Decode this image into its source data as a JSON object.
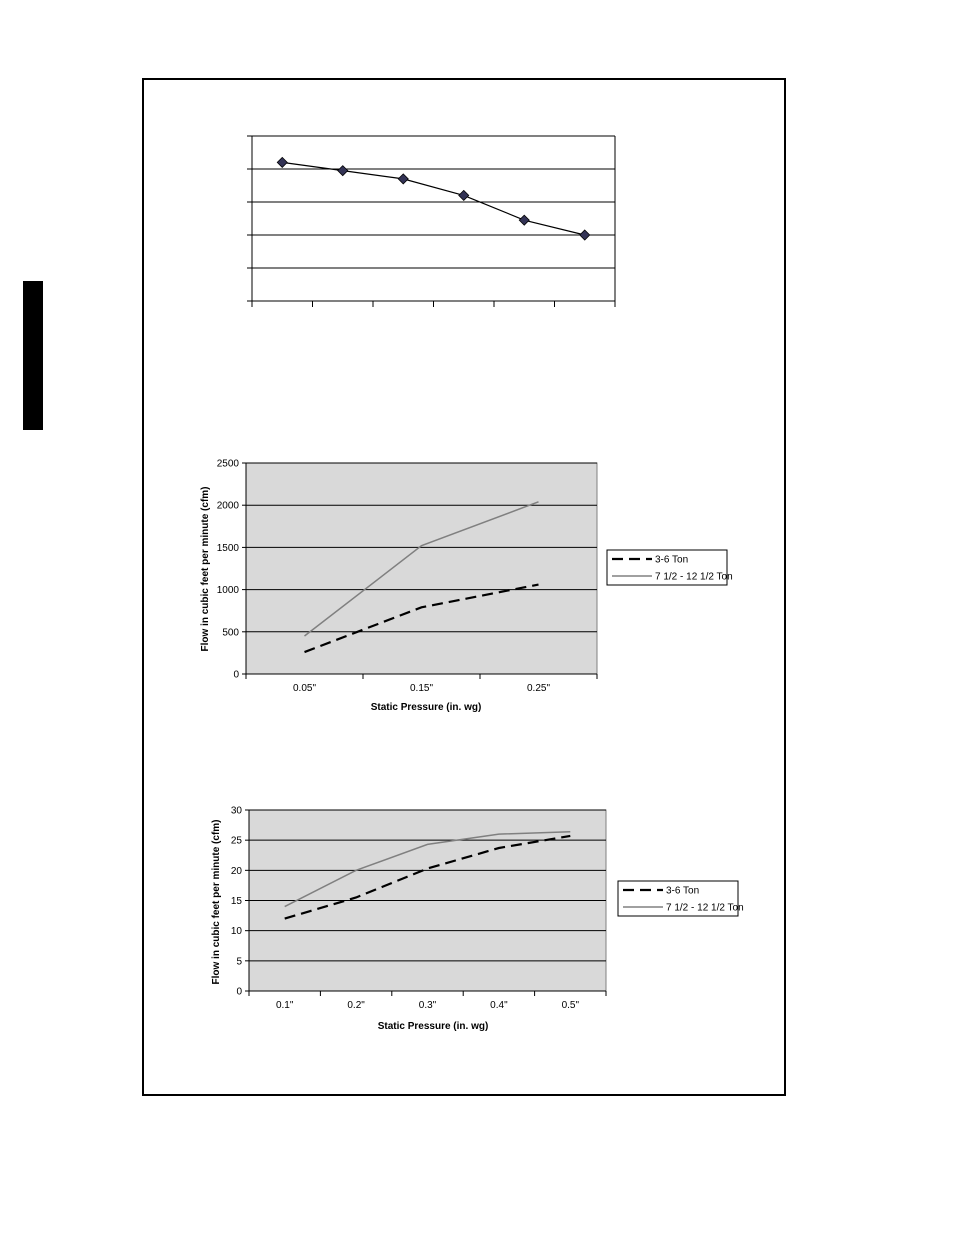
{
  "colors": {
    "plot_bg": "#d9d9d9",
    "line_gray": "#808080",
    "marker": "#333355"
  },
  "chart_data": [
    {
      "type": "line",
      "categories": [
        "",
        "",
        "",
        "",
        "",
        ""
      ],
      "series": [
        {
          "values": [
            4.2,
            3.95,
            3.7,
            3.2,
            2.45,
            2.0
          ]
        }
      ],
      "ylim": [
        0,
        5
      ],
      "grid": true,
      "markers": "diamond"
    },
    {
      "type": "line",
      "xlabel": "Static Pressure (in. wg)",
      "ylabel": "Flow in cubic feet per minute (cfm)",
      "categories": [
        "0.05\"",
        "0.15\"",
        "0.25\""
      ],
      "yticks": [
        "0",
        "500",
        "1000",
        "1500",
        "2000",
        "2500"
      ],
      "ylim": [
        0,
        2500
      ],
      "grid": true,
      "legend_position": "right",
      "series": [
        {
          "name": "3-6 Ton",
          "style": "dashed",
          "values": [
            260,
            790,
            1060
          ]
        },
        {
          "name": "7 1/2 - 12 1/2 Ton",
          "style": "solid",
          "values": [
            450,
            1520,
            2040
          ]
        }
      ]
    },
    {
      "type": "line",
      "xlabel": "Static Pressure (in. wg)",
      "ylabel": "Flow in cubic feet per minute (cfm)",
      "categories": [
        "0.1\"",
        "0.2\"",
        "0.3\"",
        "0.4\"",
        "0.5\""
      ],
      "yticks": [
        "0",
        "5",
        "10",
        "15",
        "20",
        "25",
        "30"
      ],
      "ylim": [
        0,
        30
      ],
      "grid": true,
      "legend_position": "right",
      "series": [
        {
          "name": "3-6 Ton",
          "style": "dashed",
          "values": [
            12,
            15.5,
            20.3,
            23.7,
            25.7
          ]
        },
        {
          "name": "7 1/2 - 12 1/2 Ton",
          "style": "solid",
          "values": [
            14,
            20,
            24.3,
            26,
            26.4
          ]
        }
      ]
    }
  ]
}
